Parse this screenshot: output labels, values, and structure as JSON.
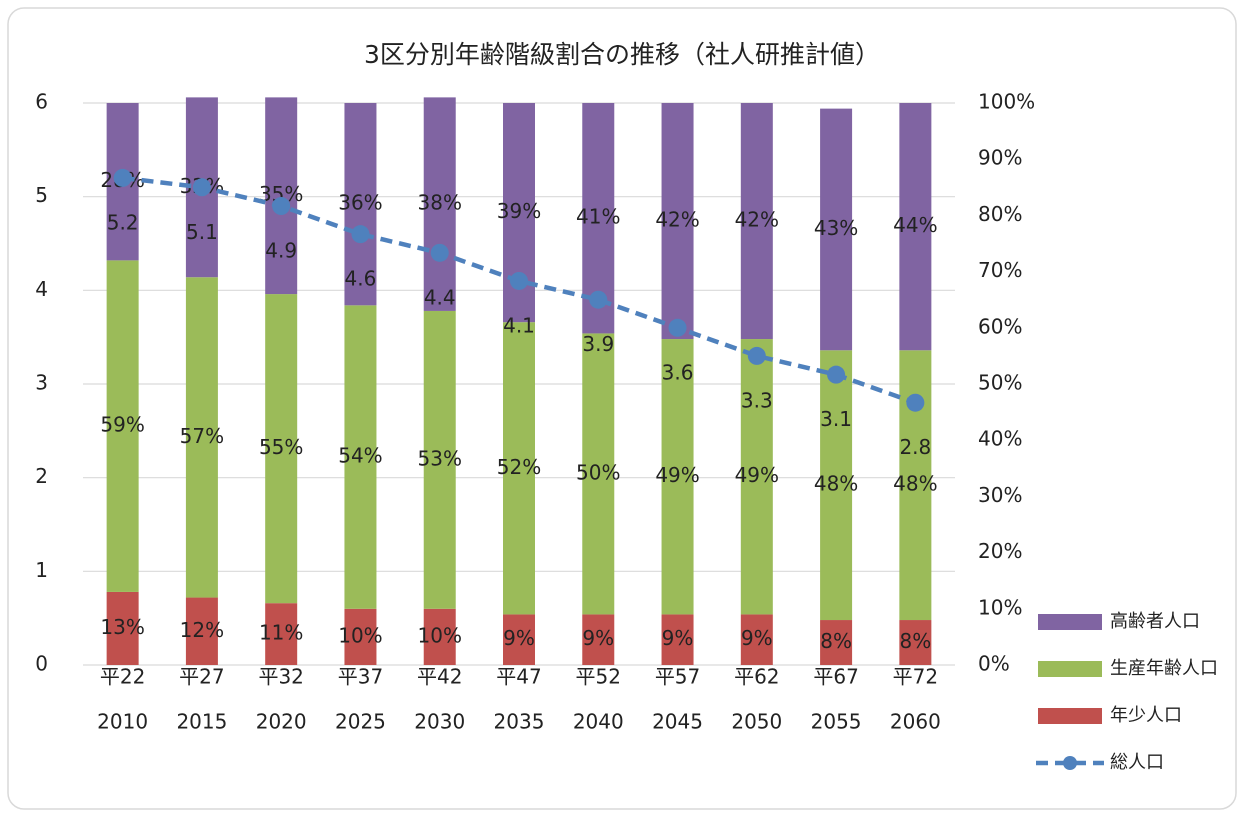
{
  "chart_data": {
    "type": "bar",
    "title": "3区分別年齢階級割合の推移（社人研推計値）",
    "categories": [
      [
        "平22",
        "2010"
      ],
      [
        "平27",
        "2015"
      ],
      [
        "平32",
        "2020"
      ],
      [
        "平37",
        "2025"
      ],
      [
        "平42",
        "2030"
      ],
      [
        "平47",
        "2035"
      ],
      [
        "平52",
        "2040"
      ],
      [
        "平57",
        "2045"
      ],
      [
        "平62",
        "2050"
      ],
      [
        "平67",
        "2055"
      ],
      [
        "平72",
        "2060"
      ]
    ],
    "stacked": true,
    "grid": true,
    "legend": "right",
    "ylim": [
      0,
      6
    ],
    "yticks": [
      0,
      1,
      2,
      3,
      4,
      5,
      6
    ],
    "y2lim": [
      0,
      100
    ],
    "y2ticks": [
      {
        "value": 0,
        "label": "0%"
      },
      {
        "value": 10,
        "label": "10%"
      },
      {
        "value": 20,
        "label": "20%"
      },
      {
        "value": 30,
        "label": "30%"
      },
      {
        "value": 40,
        "label": "40%"
      },
      {
        "value": 50,
        "label": "50%"
      },
      {
        "value": 60,
        "label": "60%"
      },
      {
        "value": 70,
        "label": "70%"
      },
      {
        "value": 80,
        "label": "80%"
      },
      {
        "value": 90,
        "label": "90%"
      },
      {
        "value": 100,
        "label": "100%"
      }
    ],
    "series": [
      {
        "name": "年少人口",
        "type": "bar",
        "axis": "y2",
        "color": "#c0504d",
        "label_color": "#953735",
        "values": [
          13,
          12,
          11,
          10,
          10,
          9,
          9,
          9,
          9,
          8,
          8
        ],
        "value_labels": [
          "13%",
          "12%",
          "11%",
          "10%",
          "10%",
          "9%",
          "9%",
          "9%",
          "9%",
          "8%",
          "8%"
        ]
      },
      {
        "name": "生産年齢人口",
        "type": "bar",
        "axis": "y2",
        "color": "#9bbb59",
        "label_color": "#4f6228",
        "values": [
          59,
          57,
          55,
          54,
          53,
          52,
          50,
          49,
          49,
          48,
          48
        ],
        "value_labels": [
          "59%",
          "57%",
          "55%",
          "54%",
          "53%",
          "52%",
          "50%",
          "49%",
          "49%",
          "48%",
          "48%"
        ]
      },
      {
        "name": "高齢者人口",
        "type": "bar",
        "axis": "y2",
        "color": "#8064a2",
        "label_color": "#7030a0",
        "values": [
          28,
          32,
          35,
          36,
          38,
          39,
          41,
          42,
          42,
          43,
          44
        ],
        "value_labels": [
          "28%",
          "32%",
          "35%",
          "36%",
          "38%",
          "39%",
          "41%",
          "42%",
          "42%",
          "43%",
          "44%"
        ]
      },
      {
        "name": "総人口",
        "type": "line",
        "axis": "y",
        "color": "#4f81bd",
        "label_color": "#215a6e",
        "values": [
          5.2,
          5.1,
          4.9,
          4.6,
          4.4,
          4.1,
          3.9,
          3.6,
          3.3,
          3.1,
          2.8
        ]
      }
    ]
  }
}
